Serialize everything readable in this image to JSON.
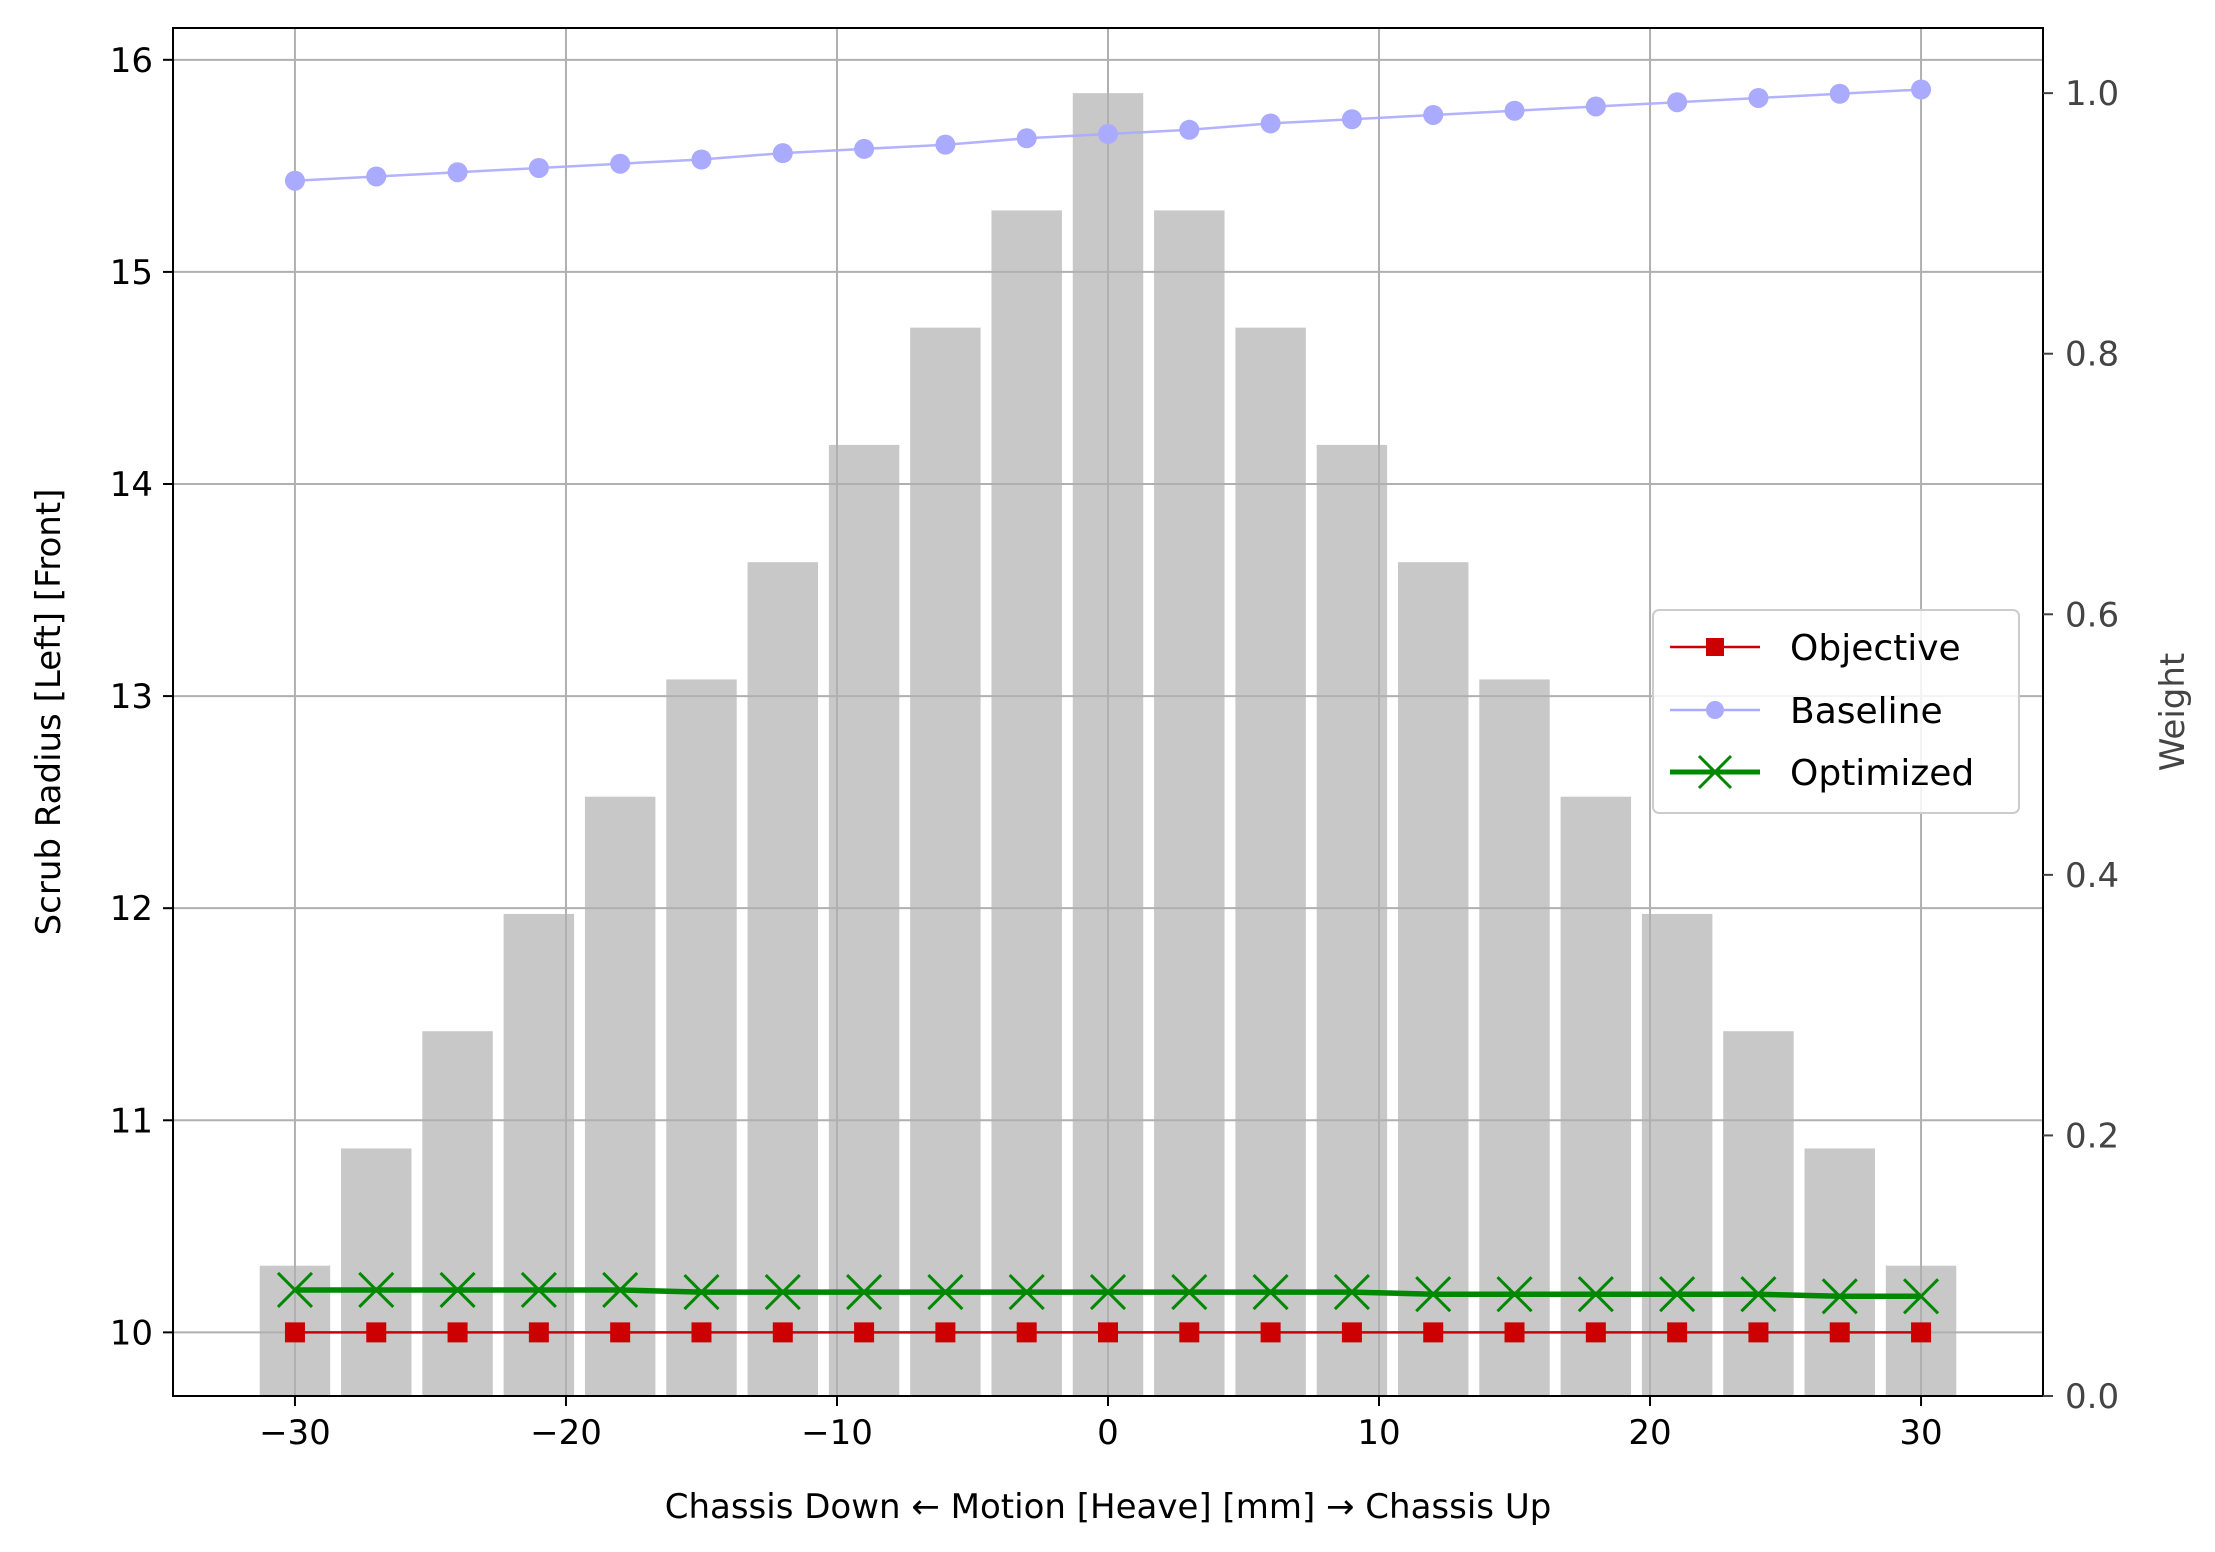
{
  "chart_data": {
    "type": "line",
    "x": [
      -30,
      -27,
      -24,
      -21,
      -18,
      -15,
      -12,
      -9,
      -6,
      -3,
      0,
      3,
      6,
      9,
      12,
      15,
      18,
      21,
      24,
      27,
      30
    ],
    "xlabel": "Chassis Down ← Motion [Heave] [mm] → Chassis Up",
    "ylabel": "Scrub Radius [Left] [Front]",
    "y2label": "Weight",
    "xlim": [
      -34.5,
      34.5
    ],
    "ylim": [
      9.7,
      16.15
    ],
    "y2lim": [
      0,
      1.05
    ],
    "xticks": [
      -30,
      -20,
      -10,
      0,
      10,
      20,
      30
    ],
    "xtick_labels": [
      "−30",
      "−20",
      "−10",
      "0",
      "10",
      "20",
      "30"
    ],
    "yticks": [
      10,
      11,
      12,
      13,
      14,
      15,
      16
    ],
    "ytick_labels": [
      "10",
      "11",
      "12",
      "13",
      "14",
      "15",
      "16"
    ],
    "y2ticks": [
      0.0,
      0.2,
      0.4,
      0.6,
      0.8,
      1.0
    ],
    "y2tick_labels": [
      "0.0",
      "0.2",
      "0.4",
      "0.6",
      "0.8",
      "1.0"
    ],
    "grid": true,
    "legend_position": "right",
    "bars": {
      "axis": "right",
      "color": "#c8c8c8",
      "values": [
        0.1,
        0.19,
        0.28,
        0.37,
        0.46,
        0.55,
        0.64,
        0.73,
        0.82,
        0.91,
        1.0,
        0.91,
        0.82,
        0.73,
        0.64,
        0.55,
        0.46,
        0.37,
        0.28,
        0.19,
        0.1
      ]
    },
    "series": [
      {
        "name": "Objective",
        "color": "#cc0000",
        "marker": "square",
        "values": [
          10,
          10,
          10,
          10,
          10,
          10,
          10,
          10,
          10,
          10,
          10,
          10,
          10,
          10,
          10,
          10,
          10,
          10,
          10,
          10,
          10
        ]
      },
      {
        "name": "Baseline",
        "color": "#aaaaff",
        "marker": "circle",
        "values": [
          15.43,
          15.45,
          15.47,
          15.49,
          15.51,
          15.53,
          15.56,
          15.58,
          15.6,
          15.63,
          15.65,
          15.67,
          15.7,
          15.72,
          15.74,
          15.76,
          15.78,
          15.8,
          15.82,
          15.84,
          15.86
        ]
      },
      {
        "name": "Optimized",
        "color": "#008800",
        "marker": "x",
        "values": [
          10.2,
          10.2,
          10.2,
          10.2,
          10.2,
          10.19,
          10.19,
          10.19,
          10.19,
          10.19,
          10.19,
          10.19,
          10.19,
          10.19,
          10.18,
          10.18,
          10.18,
          10.18,
          10.18,
          10.17,
          10.17
        ]
      }
    ]
  }
}
